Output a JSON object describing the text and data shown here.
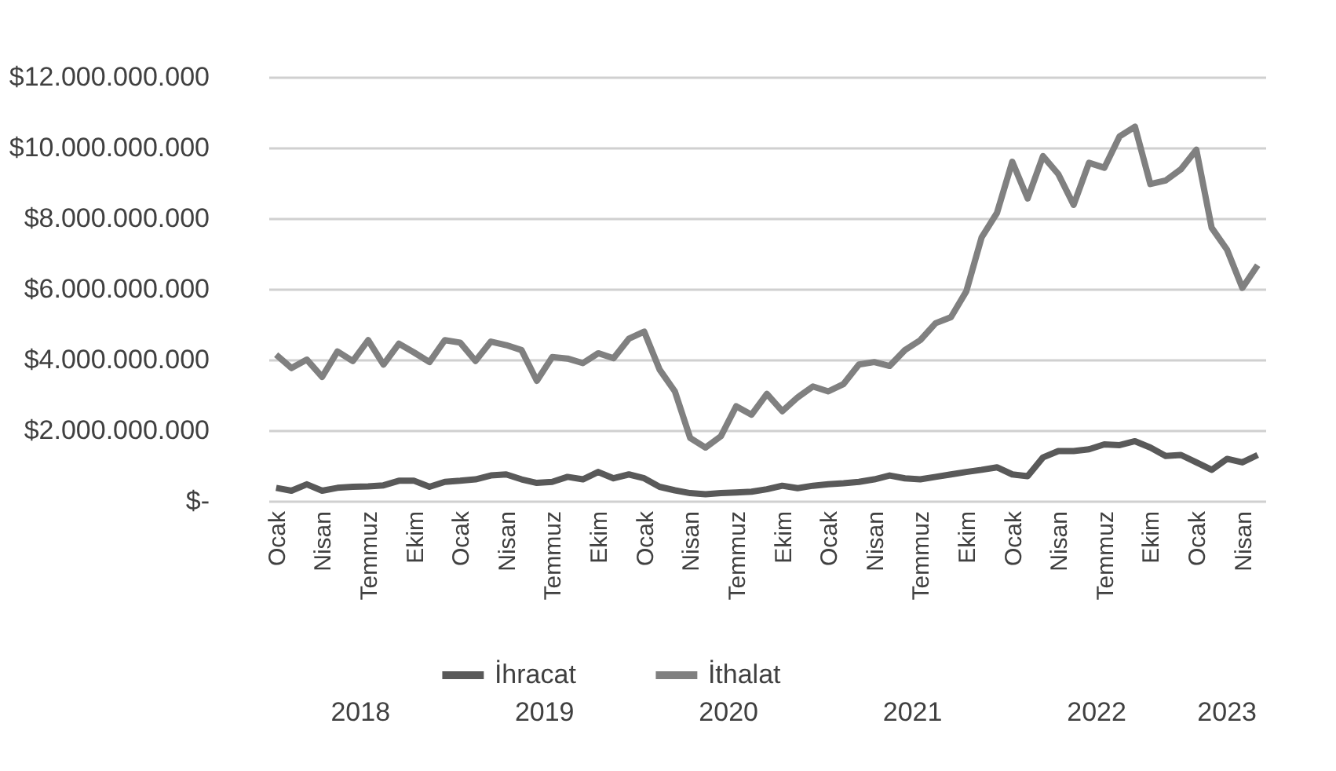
{
  "chart_data": {
    "type": "line",
    "categories": [
      "Ocak",
      null,
      null,
      "Nisan",
      null,
      null,
      "Temmuz",
      null,
      null,
      "Ekim",
      null,
      null,
      "Ocak",
      null,
      null,
      "Nisan",
      null,
      null,
      "Temmuz",
      null,
      null,
      "Ekim",
      null,
      null,
      "Ocak",
      null,
      null,
      "Nisan",
      null,
      null,
      "Temmuz",
      null,
      null,
      "Ekim",
      null,
      null,
      "Ocak",
      null,
      null,
      "Nisan",
      null,
      null,
      "Temmuz",
      null,
      null,
      "Ekim",
      null,
      null,
      "Ocak",
      null,
      null,
      "Nisan",
      null,
      null,
      "Temmuz",
      null,
      null,
      "Ekim",
      null,
      null,
      "Ocak",
      null,
      null,
      "Nisan",
      null
    ],
    "series": [
      {
        "name": "İhracat",
        "color": "#595959",
        "values": [
          370000000.0,
          290000000.0,
          470000000.0,
          290000000.0,
          370000000.0,
          400000000.0,
          410000000.0,
          440000000.0,
          570000000.0,
          570000000.0,
          400000000.0,
          540000000.0,
          570000000.0,
          610000000.0,
          720000000.0,
          750000000.0,
          610000000.0,
          510000000.0,
          540000000.0,
          680000000.0,
          610000000.0,
          820000000.0,
          640000000.0,
          750000000.0,
          640000000.0,
          400000000.0,
          300000000.0,
          220000000.0,
          190000000.0,
          220000000.0,
          240000000.0,
          260000000.0,
          330000000.0,
          430000000.0,
          360000000.0,
          430000000.0,
          470000000.0,
          500000000.0,
          540000000.0,
          610000000.0,
          720000000.0,
          640000000.0,
          610000000.0,
          680000000.0,
          750000000.0,
          820000000.0,
          880000000.0,
          950000000.0,
          750000000.0,
          700000000.0,
          1230000000.0,
          1410000000.0,
          1410000000.0,
          1460000000.0,
          1600000000.0,
          1580000000.0,
          1690000000.0,
          1510000000.0,
          1270000000.0,
          1300000000.0,
          1090000000.0,
          880000000.0,
          1190000000.0,
          1090000000.0,
          1300000000.0
        ]
      },
      {
        "name": "İthalat",
        "color": "#808080",
        "values": [
          4140000000.0,
          3760000000.0,
          4000000000.0,
          3510000000.0,
          4230000000.0,
          3960000000.0,
          4550000000.0,
          3860000000.0,
          4450000000.0,
          4200000000.0,
          3930000000.0,
          4550000000.0,
          4480000000.0,
          3960000000.0,
          4510000000.0,
          4410000000.0,
          4270000000.0,
          3400000000.0,
          4070000000.0,
          4030000000.0,
          3900000000.0,
          4180000000.0,
          4040000000.0,
          4590000000.0,
          4790000000.0,
          3720000000.0,
          3100000000.0,
          1780000000.0,
          1510000000.0,
          1830000000.0,
          2680000000.0,
          2440000000.0,
          3030000000.0,
          2540000000.0,
          2930000000.0,
          3240000000.0,
          3100000000.0,
          3310000000.0,
          3860000000.0,
          3930000000.0,
          3820000000.0,
          4270000000.0,
          4550000000.0,
          5030000000.0,
          5200000000.0,
          5930000000.0,
          7460000000.0,
          8150000000.0,
          9600000000.0,
          8560000000.0,
          9760000000.0,
          9250000000.0,
          8380000000.0,
          9570000000.0,
          9430000000.0,
          10320000000.0,
          10590000000.0,
          8970000000.0,
          9070000000.0,
          9390000000.0,
          9940000000.0,
          7730000000.0,
          7110000000.0,
          6030000000.0,
          6670000000.0
        ]
      }
    ],
    "ylim": [
      0,
      12000000000
    ],
    "yticks": [
      {
        "value": 0,
        "label": "$-"
      },
      {
        "value": 2000000000,
        "label": "$2.000.000.000"
      },
      {
        "value": 4000000000,
        "label": "$4.000.000.000"
      },
      {
        "value": 6000000000,
        "label": "$6.000.000.000"
      },
      {
        "value": 8000000000,
        "label": "$8.000.000.000"
      },
      {
        "value": 10000000000,
        "label": "$10.000.000.000"
      },
      {
        "value": 12000000000,
        "label": "$12.000.000.000"
      }
    ],
    "annotations": [
      "2018",
      "2019",
      "2020",
      "2021",
      "2022",
      "2023"
    ],
    "grid": "y",
    "legend": "bottom",
    "marker": "none",
    "line_style": "solid"
  }
}
